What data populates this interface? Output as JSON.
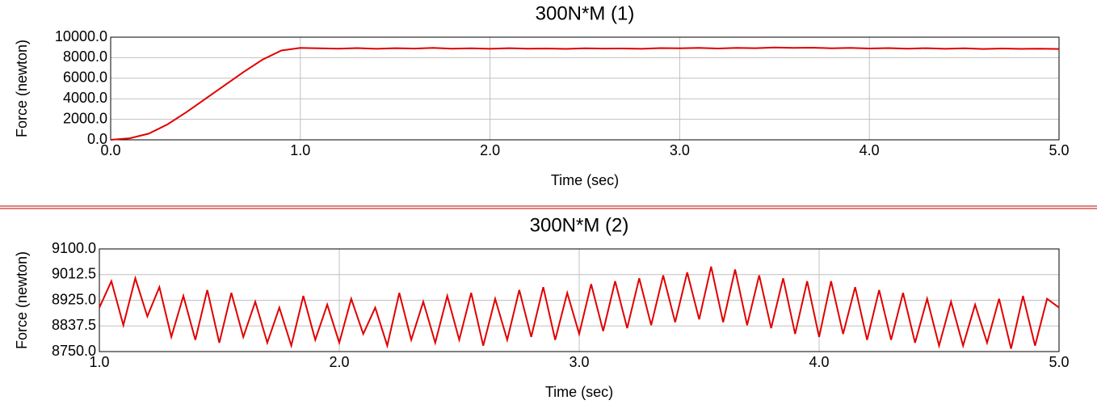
{
  "chart_data": [
    {
      "type": "line",
      "title": "300N*M  (1)",
      "x_label": "Time (sec)",
      "y_label": "Force (newton)",
      "xlim": [
        0,
        5
      ],
      "ylim": [
        0,
        10000
      ],
      "grid": true,
      "xticks": [
        {
          "value": 0,
          "label": "0.0"
        },
        {
          "value": 1,
          "label": "1.0"
        },
        {
          "value": 2,
          "label": "2.0"
        },
        {
          "value": 3,
          "label": "3.0"
        },
        {
          "value": 4,
          "label": "4.0"
        },
        {
          "value": 5,
          "label": "5.0"
        }
      ],
      "yticks": [
        {
          "value": 0,
          "label": "0.0"
        },
        {
          "value": 2000,
          "label": "2000.0"
        },
        {
          "value": 4000,
          "label": "4000.0"
        },
        {
          "value": 6000,
          "label": "6000.0"
        },
        {
          "value": 8000,
          "label": "8000.0"
        },
        {
          "value": 10000,
          "label": "10000.0"
        }
      ],
      "x": [
        0,
        0.1,
        0.2,
        0.3,
        0.4,
        0.5,
        0.6,
        0.7,
        0.8,
        0.9,
        1.0,
        1.1,
        1.2,
        1.3,
        1.4,
        1.5,
        1.6,
        1.7,
        1.8,
        1.9,
        2.0,
        2.1,
        2.2,
        2.3,
        2.4,
        2.5,
        2.6,
        2.7,
        2.8,
        2.9,
        3.0,
        3.1,
        3.2,
        3.3,
        3.4,
        3.5,
        3.6,
        3.7,
        3.8,
        3.9,
        4.0,
        4.1,
        4.2,
        4.3,
        4.4,
        4.5,
        4.6,
        4.7,
        4.8,
        4.9,
        5.0
      ],
      "series": [
        {
          "name": "Force",
          "color": "#e00000",
          "values": [
            0,
            150,
            600,
            1500,
            2700,
            4000,
            5300,
            6600,
            7800,
            8700,
            8950,
            8920,
            8880,
            8940,
            8870,
            8930,
            8890,
            8950,
            8880,
            8910,
            8870,
            8930,
            8880,
            8900,
            8860,
            8920,
            8890,
            8900,
            8870,
            8940,
            8910,
            8950,
            8900,
            8960,
            8930,
            9000,
            8950,
            8980,
            8920,
            8960,
            8900,
            8940,
            8880,
            8930,
            8870,
            8910,
            8850,
            8900,
            8860,
            8880,
            8850
          ]
        }
      ]
    },
    {
      "type": "line",
      "title": "300N*M  (2)",
      "x_label": "Time (sec)",
      "y_label": "Force (newton)",
      "xlim": [
        1,
        5
      ],
      "ylim": [
        8750,
        9100
      ],
      "grid": true,
      "xticks": [
        {
          "value": 1,
          "label": "1.0"
        },
        {
          "value": 2,
          "label": "2.0"
        },
        {
          "value": 3,
          "label": "3.0"
        },
        {
          "value": 4,
          "label": "4.0"
        },
        {
          "value": 5,
          "label": "5.0"
        }
      ],
      "yticks": [
        {
          "value": 8750,
          "label": "8750.0"
        },
        {
          "value": 8837.5,
          "label": "8837.5"
        },
        {
          "value": 8925,
          "label": "8925.0"
        },
        {
          "value": 9012.5,
          "label": "9012.5"
        },
        {
          "value": 9100,
          "label": "9100.0"
        }
      ],
      "x": [
        1.0,
        1.05,
        1.1,
        1.15,
        1.2,
        1.25,
        1.3,
        1.35,
        1.4,
        1.45,
        1.5,
        1.55,
        1.6,
        1.65,
        1.7,
        1.75,
        1.8,
        1.85,
        1.9,
        1.95,
        2.0,
        2.05,
        2.1,
        2.15,
        2.2,
        2.25,
        2.3,
        2.35,
        2.4,
        2.45,
        2.5,
        2.55,
        2.6,
        2.65,
        2.7,
        2.75,
        2.8,
        2.85,
        2.9,
        2.95,
        3.0,
        3.05,
        3.1,
        3.15,
        3.2,
        3.25,
        3.3,
        3.35,
        3.4,
        3.45,
        3.5,
        3.55,
        3.6,
        3.65,
        3.7,
        3.75,
        3.8,
        3.85,
        3.9,
        3.95,
        4.0,
        4.05,
        4.1,
        4.15,
        4.2,
        4.25,
        4.3,
        4.35,
        4.4,
        4.45,
        4.5,
        4.55,
        4.6,
        4.65,
        4.7,
        4.75,
        4.8,
        4.85,
        4.9,
        4.95,
        5.0
      ],
      "series": [
        {
          "name": "Force",
          "color": "#e00000",
          "values": [
            8900,
            8990,
            8840,
            9000,
            8870,
            8970,
            8800,
            8940,
            8790,
            8960,
            8780,
            8950,
            8800,
            8920,
            8780,
            8900,
            8770,
            8940,
            8790,
            8910,
            8780,
            8930,
            8810,
            8900,
            8770,
            8950,
            8790,
            8920,
            8780,
            8940,
            8790,
            8950,
            8770,
            8930,
            8790,
            8960,
            8800,
            8970,
            8790,
            8950,
            8810,
            8980,
            8820,
            8990,
            8830,
            9000,
            8840,
            9010,
            8850,
            9020,
            8860,
            9040,
            8850,
            9030,
            8840,
            9010,
            8830,
            9000,
            8810,
            8990,
            8800,
            8990,
            8810,
            8970,
            8790,
            8960,
            8790,
            8950,
            8780,
            8930,
            8770,
            8920,
            8770,
            8910,
            8780,
            8930,
            8760,
            8940,
            8770,
            8930,
            8900
          ]
        }
      ]
    }
  ]
}
